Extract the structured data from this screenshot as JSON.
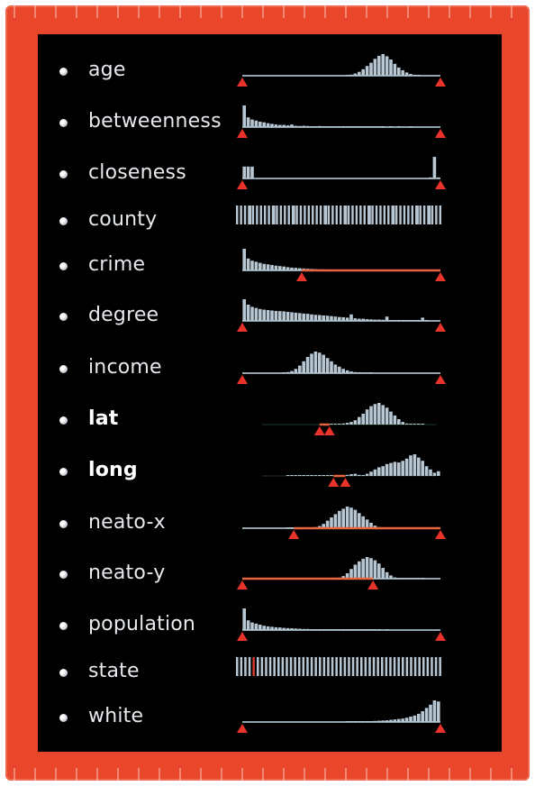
{
  "colors": {
    "frame": "#e8472c",
    "panel": "#000000",
    "bar": "#b7c6d3",
    "baseline": "#8fa3ad",
    "range": "#e8663f",
    "handle": "#e8322a"
  },
  "attributes": [
    {
      "label": "age",
      "bold": false,
      "kind": "histogram",
      "bars": [
        0,
        0,
        0,
        0,
        0,
        0,
        0,
        0,
        0,
        0,
        0,
        0,
        0,
        0,
        0,
        0,
        0,
        0,
        0,
        0,
        0,
        0,
        0,
        0,
        0,
        0,
        0.02,
        0.05,
        0.1,
        0.18,
        0.3,
        0.45,
        0.6,
        0.78,
        0.92,
        1,
        0.9,
        0.75,
        0.55,
        0.38,
        0.25,
        0.15,
        0.08,
        0.04,
        0.02,
        0,
        0,
        0,
        0,
        0
      ],
      "range": [
        0,
        1
      ],
      "filtered": false
    },
    {
      "label": "betweenness",
      "bold": false,
      "kind": "histogram",
      "bars": [
        1,
        0.45,
        0.35,
        0.3,
        0.25,
        0.22,
        0.18,
        0.15,
        0.12,
        0.1,
        0.1,
        0.08,
        0.12,
        0.06,
        0.05,
        0.06,
        0.05,
        0.04,
        0.04,
        0.05,
        0.03,
        0.03,
        0.02,
        0.03,
        0.02,
        0.02,
        0.02,
        0.02,
        0.01,
        0.02,
        0.01,
        0.01,
        0.01,
        0.01,
        0.01,
        0.01,
        0,
        0.01,
        0,
        0.01,
        0,
        0,
        0.01,
        0,
        0,
        0,
        0,
        0,
        0,
        0
      ],
      "range": [
        0,
        1
      ],
      "filtered": false
    },
    {
      "label": "closeness",
      "bold": false,
      "kind": "histogram",
      "bars": [
        0.55,
        0.55,
        0.55,
        0,
        0,
        0,
        0,
        0,
        0,
        0,
        0,
        0,
        0,
        0,
        0,
        0,
        0,
        0,
        0,
        0,
        0,
        0,
        0,
        0,
        0,
        0,
        0,
        0,
        0,
        0,
        0,
        0,
        0,
        0,
        0,
        0,
        0,
        0,
        0,
        0,
        0,
        0,
        0,
        0,
        0,
        0,
        0,
        0.05,
        1,
        0.05
      ],
      "range": [
        0,
        1
      ],
      "filtered": false
    },
    {
      "label": "county",
      "bold": false,
      "kind": "categorical",
      "stripes": 52,
      "gaps": [
        3,
        9,
        14,
        22,
        27,
        33,
        39,
        45,
        48
      ],
      "highlight": []
    },
    {
      "label": "crime",
      "bold": false,
      "kind": "histogram",
      "bars": [
        1,
        0.55,
        0.45,
        0.4,
        0.35,
        0.3,
        0.28,
        0.25,
        0.22,
        0.2,
        0.18,
        0.15,
        0.13,
        0.12,
        0.1,
        0.09,
        0.08,
        0.07,
        0.06,
        0.05,
        0.05,
        0.04,
        0.03,
        0.03,
        0.03,
        0.02,
        0.02,
        0.02,
        0.02,
        0.01,
        0.01,
        0.01,
        0.01,
        0.01,
        0.01,
        0.01,
        0,
        0,
        0,
        0,
        0,
        0,
        0,
        0,
        0,
        0,
        0,
        0,
        0,
        0
      ],
      "range": [
        0.3,
        1
      ],
      "filtered": true
    },
    {
      "label": "degree",
      "bold": false,
      "kind": "histogram",
      "bars": [
        1,
        0.75,
        0.65,
        0.6,
        0.55,
        0.52,
        0.5,
        0.48,
        0.46,
        0.45,
        0.44,
        0.42,
        0.4,
        0.38,
        0.36,
        0.34,
        0.33,
        0.3,
        0.28,
        0.27,
        0.25,
        0.24,
        0.22,
        0.2,
        0.18,
        0.17,
        0.15,
        0.3,
        0.12,
        0.1,
        0.1,
        0.08,
        0.07,
        0.06,
        0.06,
        0.05,
        0.2,
        0.04,
        0.03,
        0.03,
        0.02,
        0.02,
        0.02,
        0.01,
        0.01,
        0.15,
        0.01,
        0,
        0,
        0
      ],
      "range": [
        0,
        1
      ],
      "filtered": false
    },
    {
      "label": "income",
      "bold": false,
      "kind": "histogram",
      "bars": [
        0,
        0,
        0,
        0,
        0,
        0,
        0,
        0,
        0,
        0,
        0.02,
        0.05,
        0.1,
        0.2,
        0.35,
        0.55,
        0.75,
        0.9,
        1,
        0.95,
        0.85,
        0.7,
        0.55,
        0.4,
        0.3,
        0.2,
        0.13,
        0.08,
        0.05,
        0.03,
        0.02,
        0.01,
        0.01,
        0,
        0,
        0,
        0,
        0,
        0,
        0,
        0,
        0,
        0,
        0,
        0,
        0,
        0,
        0,
        0,
        0
      ],
      "range": [
        0,
        1
      ],
      "filtered": false
    },
    {
      "label": "lat",
      "bold": true,
      "kind": "histogram",
      "bars": [
        0,
        0,
        0,
        0,
        0,
        0,
        0,
        0,
        0,
        0,
        0,
        0,
        0,
        0,
        0,
        0,
        0,
        0,
        0,
        0,
        0.02,
        0.02,
        0.03,
        0.02,
        0.03,
        0.05,
        0.08,
        0.12,
        0.2,
        0.35,
        0.5,
        0.7,
        0.85,
        0.95,
        1,
        0.9,
        0.78,
        0.6,
        0.42,
        0.25,
        0.12,
        0.05,
        0.02,
        0.01,
        0.01,
        0.01,
        0,
        0,
        0,
        0
      ],
      "range": [
        0.39,
        0.44
      ],
      "filtered": true,
      "baseline": false
    },
    {
      "label": "long",
      "bold": true,
      "kind": "histogram",
      "bars": [
        0,
        0,
        0,
        0,
        0,
        0,
        0,
        0,
        0,
        0,
        0,
        0.01,
        0.01,
        0.01,
        0.01,
        0.01,
        0.01,
        0.01,
        0.01,
        0.01,
        0.01,
        0.01,
        0.01,
        0.01,
        0.01,
        0.02,
        0.05,
        0.08,
        0.1,
        0.05,
        0.02,
        0.1,
        0.2,
        0.3,
        0.4,
        0.45,
        0.55,
        0.6,
        0.65,
        0.62,
        0.7,
        0.8,
        0.95,
        1,
        0.85,
        0.7,
        0.45,
        0.3,
        0.15,
        0.22
      ],
      "range": [
        0.46,
        0.52
      ],
      "filtered": true,
      "baseline": false
    },
    {
      "label": "neato-x",
      "bold": false,
      "kind": "histogram",
      "bars": [
        0,
        0,
        0,
        0,
        0,
        0,
        0,
        0,
        0,
        0,
        0,
        0.01,
        0.01,
        0.01,
        0.01,
        0.02,
        0.02,
        0.03,
        0.05,
        0.1,
        0.2,
        0.35,
        0.5,
        0.65,
        0.8,
        0.9,
        1,
        0.95,
        0.85,
        0.7,
        0.55,
        0.4,
        0.25,
        0.12,
        0.05,
        0.02,
        0.01,
        0,
        0,
        0,
        0,
        0,
        0,
        0,
        0,
        0,
        0,
        0,
        0,
        0
      ],
      "range": [
        0.26,
        1
      ],
      "filtered": true
    },
    {
      "label": "neato-y",
      "bold": false,
      "kind": "histogram",
      "bars": [
        0,
        0,
        0,
        0,
        0,
        0,
        0,
        0,
        0,
        0,
        0,
        0,
        0,
        0,
        0,
        0,
        0,
        0,
        0,
        0,
        0,
        0,
        0,
        0.02,
        0.05,
        0.12,
        0.25,
        0.45,
        0.65,
        0.8,
        0.92,
        1,
        0.95,
        0.85,
        0.7,
        0.5,
        0.3,
        0.15,
        0.06,
        0.02,
        0.01,
        0.01,
        0.01,
        0.01,
        0.01,
        0.01,
        0,
        0,
        0,
        0
      ],
      "range": [
        0,
        0.66
      ],
      "filtered": true
    },
    {
      "label": "population",
      "bold": false,
      "kind": "histogram",
      "bars": [
        1,
        0.45,
        0.35,
        0.3,
        0.25,
        0.2,
        0.17,
        0.15,
        0.13,
        0.12,
        0.1,
        0.09,
        0.08,
        0.07,
        0.06,
        0.05,
        0.05,
        0.04,
        0.04,
        0.03,
        0.03,
        0.03,
        0.02,
        0.02,
        0.02,
        0.02,
        0.02,
        0.01,
        0.01,
        0.01,
        0.01,
        0.01,
        0.01,
        0.01,
        0.01,
        0,
        0.01,
        0,
        0,
        0,
        0,
        0,
        0,
        0,
        0,
        0,
        0,
        0,
        0,
        0
      ],
      "range": [
        0,
        1
      ],
      "filtered": false
    },
    {
      "label": "state",
      "bold": false,
      "kind": "categorical",
      "stripes": 50,
      "gaps": [],
      "highlight": [
        4
      ]
    },
    {
      "label": "white",
      "bold": false,
      "kind": "histogram",
      "bars": [
        0,
        0,
        0,
        0,
        0,
        0,
        0,
        0,
        0,
        0,
        0,
        0,
        0,
        0,
        0,
        0,
        0,
        0,
        0,
        0,
        0,
        0,
        0,
        0,
        0,
        0,
        0.01,
        0.01,
        0.01,
        0.02,
        0.02,
        0.03,
        0.04,
        0.05,
        0.06,
        0.07,
        0.08,
        0.1,
        0.12,
        0.14,
        0.16,
        0.2,
        0.25,
        0.3,
        0.38,
        0.5,
        0.65,
        0.8,
        1,
        0.95
      ],
      "range": [
        0,
        1
      ],
      "filtered": false
    }
  ]
}
